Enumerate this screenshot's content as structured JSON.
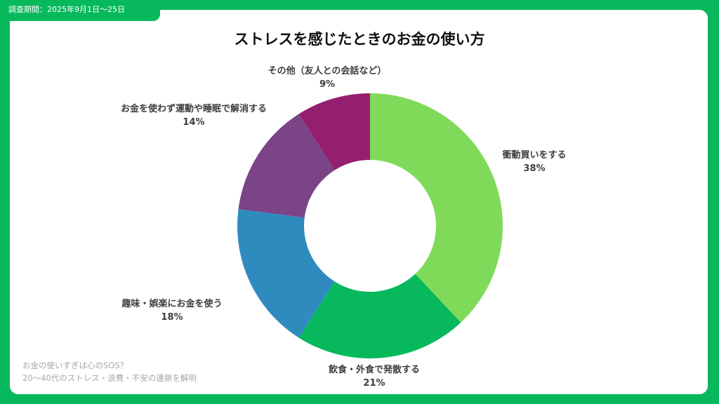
{
  "survey_period": "調査期間：2025年9月1日〜25日",
  "footnote": {
    "line1": "お金の使いすぎは心のSOS？",
    "line2": "20〜40代のストレス・浪費・不安の連鎖を解明"
  },
  "chart_data": {
    "type": "pie",
    "donut": true,
    "title": "ストレスを感じたときのお金の使い方",
    "slices": [
      {
        "label": "衝動買いをする",
        "value": 38,
        "value_label": "38%",
        "color": "#80da5a"
      },
      {
        "label": "飲食・外食で発散する",
        "value": 21,
        "value_label": "21%",
        "color": "#07b95c"
      },
      {
        "label": "趣味・娯楽にお金を使う",
        "value": 18,
        "value_label": "18%",
        "color": "#2f8bbe"
      },
      {
        "label": "お金を使わず運動や睡眠で解消する",
        "value": 14,
        "value_label": "14%",
        "color": "#7a4487"
      },
      {
        "label": "その他（友人との会話など）",
        "value": 9,
        "value_label": "9%",
        "color": "#951f6f"
      }
    ]
  }
}
